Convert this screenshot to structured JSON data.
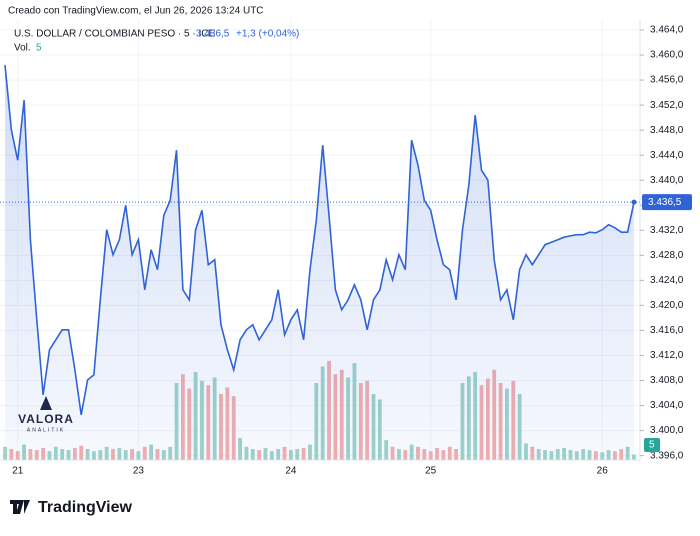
{
  "chart_data": {
    "type": "area",
    "credit": "Creado con TradingView.com, el Jun 26, 2026 13:24 UTC",
    "title": "U.S. DOLLAR / COLOMBIAN PESO · 5 · ICE",
    "last": "3.436,5",
    "change": "+1,3 (+0,04%)",
    "volume_title": "Vol.",
    "volume_label": "5",
    "price_label": "3.436,5",
    "watermark": "VALORA",
    "watermark_sub": "ANALITIK",
    "brand": "TradingView",
    "color": "#2f63d6",
    "up_color": "#9fd4c9",
    "down_color": "#f3b0ae",
    "grid": true,
    "series": [
      {
        "name": "U.S. DOLLAR / COLOMBIAN PESO",
        "values": [
          3458.4,
          3448.0,
          3443.2,
          3452.8,
          3430.5,
          3417.7,
          3405.7,
          3412.9,
          3414.5,
          3416.1,
          3416.1,
          3409.7,
          3402.5,
          3408.1,
          3408.9,
          3420.9,
          3432.1,
          3428.1,
          3430.5,
          3436.0,
          3428.1,
          3430.5,
          3422.5,
          3428.9,
          3425.7,
          3434.4,
          3436.8,
          3444.8,
          3422.5,
          3420.9,
          3432.1,
          3435.2,
          3426.5,
          3427.3,
          3416.9,
          3412.9,
          3409.7,
          3414.5,
          3416.1,
          3416.9,
          3414.5,
          3416.1,
          3417.7,
          3422.5,
          3415.3,
          3417.7,
          3419.3,
          3414.5,
          3425.7,
          3433.6,
          3445.6,
          3434.4,
          3422.5,
          3419.3,
          3420.9,
          3423.3,
          3420.9,
          3416.1,
          3420.9,
          3422.5,
          3427.3,
          3424.1,
          3428.1,
          3425.7,
          3446.4,
          3442.4,
          3436.8,
          3435.2,
          3430.5,
          3426.5,
          3425.7,
          3420.9,
          3432.1,
          3439.2,
          3450.4,
          3441.6,
          3440.0,
          3427.3,
          3420.9,
          3422.5,
          3417.7,
          3425.7,
          3428.1,
          3426.5,
          3428.1,
          3429.7,
          3430.1,
          3430.5,
          3430.9,
          3431.1,
          3431.3,
          3431.3,
          3431.7,
          3431.6,
          3432.1,
          3432.9,
          3432.4,
          3431.7,
          3431.7,
          3436.5
        ]
      }
    ],
    "volume": {
      "ylim": [
        0,
        100
      ],
      "values": [
        12,
        10,
        8,
        14,
        10,
        9,
        11,
        8,
        12,
        10,
        9,
        11,
        13,
        10,
        8,
        9,
        12,
        10,
        11,
        9,
        10,
        8,
        12,
        14,
        10,
        9,
        12,
        70,
        78,
        65,
        80,
        72,
        68,
        75,
        60,
        66,
        58,
        20,
        12,
        10,
        9,
        11,
        8,
        10,
        12,
        9,
        10,
        11,
        14,
        70,
        85,
        90,
        78,
        82,
        75,
        88,
        70,
        72,
        60,
        55,
        18,
        12,
        10,
        9,
        14,
        12,
        10,
        8,
        11,
        9,
        12,
        10,
        70,
        76,
        80,
        68,
        74,
        82,
        70,
        65,
        72,
        60,
        15,
        12,
        10,
        9,
        8,
        10,
        11,
        9,
        8,
        10,
        9,
        8,
        7,
        9,
        8,
        10,
        12,
        5
      ]
    },
    "ylim": [
      3395.3,
      3465.6
    ],
    "yticks": [
      {
        "value": 3396,
        "label": "3.396,0"
      },
      {
        "value": 3400,
        "label": "3.400,0"
      },
      {
        "value": 3404,
        "label": "3.404,0"
      },
      {
        "value": 3408,
        "label": "3.408,0"
      },
      {
        "value": 3412,
        "label": "3.412,0"
      },
      {
        "value": 3416,
        "label": "3.416,0"
      },
      {
        "value": 3420,
        "label": "3.420,0"
      },
      {
        "value": 3424,
        "label": "3.424,0"
      },
      {
        "value": 3428,
        "label": "3.428,0"
      },
      {
        "value": 3432,
        "label": "3.432,0"
      },
      {
        "value": 3436,
        "label": "3.436,0"
      },
      {
        "value": 3440,
        "label": "3.440,0"
      },
      {
        "value": 3444,
        "label": "3.444,0"
      },
      {
        "value": 3448,
        "label": "3.448,0"
      },
      {
        "value": 3452,
        "label": "3.452,0"
      },
      {
        "value": 3456,
        "label": "3.456,0"
      },
      {
        "value": 3460,
        "label": "3.460,0"
      },
      {
        "value": 3464,
        "label": "3.464,0"
      }
    ],
    "xlim": [
      0,
      99
    ],
    "xticks": [
      {
        "value": 2,
        "label": "21"
      },
      {
        "value": 21,
        "label": "23"
      },
      {
        "value": 45,
        "label": "24"
      },
      {
        "value": 67,
        "label": "25"
      },
      {
        "value": 94,
        "label": "26"
      }
    ]
  }
}
